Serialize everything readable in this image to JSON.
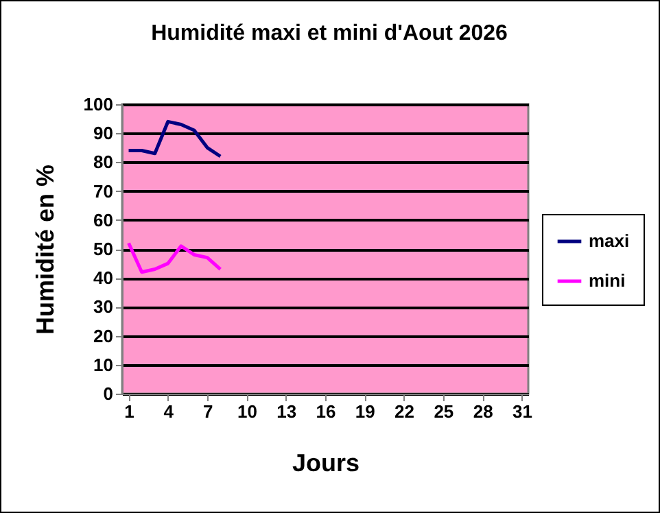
{
  "chart_data": {
    "type": "line",
    "title": "Humidité maxi et mini d'Aout 2026",
    "xlabel": "Jours",
    "ylabel": "Humidité en %",
    "x": [
      1,
      2,
      3,
      4,
      5,
      6,
      7,
      8
    ],
    "series": [
      {
        "name": "maxi",
        "color": "#000080",
        "values": [
          84,
          84,
          83,
          94,
          93,
          91,
          85,
          82
        ]
      },
      {
        "name": "mini",
        "color": "#ff00ff",
        "values": [
          52,
          42,
          43,
          45,
          51,
          48,
          47,
          43
        ]
      }
    ],
    "xlim": [
      0.5,
      31.5
    ],
    "xticks": [
      1,
      4,
      7,
      10,
      13,
      16,
      19,
      22,
      25,
      28,
      31
    ],
    "ylim": [
      0,
      100
    ],
    "yticks": [
      0,
      10,
      20,
      30,
      40,
      50,
      60,
      70,
      80,
      90,
      100
    ],
    "grid": "y",
    "legend": "right",
    "marker": "none",
    "line_style": "solid"
  }
}
